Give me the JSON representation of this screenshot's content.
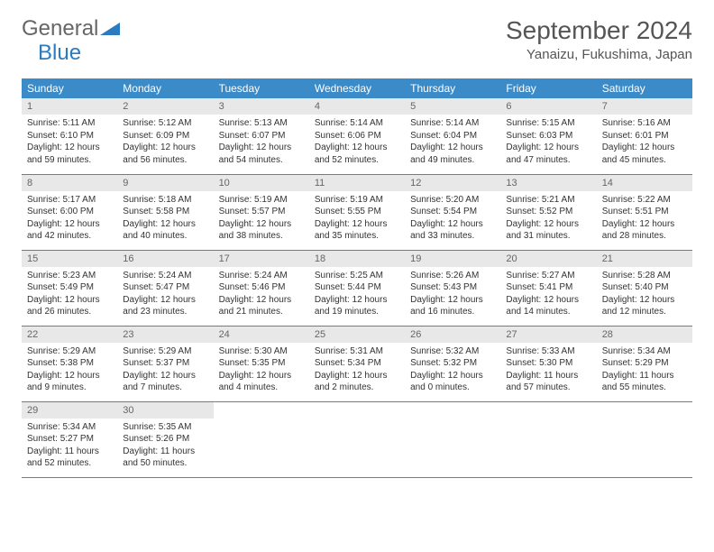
{
  "brand": {
    "part1": "General",
    "part2": "Blue"
  },
  "title": "September 2024",
  "location": "Yanaizu, Fukushima, Japan",
  "colors": {
    "header_bg": "#3b8bc8",
    "header_text": "#ffffff",
    "daynum_bg": "#e8e8e8",
    "daynum_text": "#666666",
    "body_text": "#333333",
    "title_text": "#555555",
    "row_border": "#3b8bc8",
    "logo_gray": "#666666",
    "logo_blue": "#2b7bbf"
  },
  "weekdays": [
    "Sunday",
    "Monday",
    "Tuesday",
    "Wednesday",
    "Thursday",
    "Friday",
    "Saturday"
  ],
  "start_offset": 0,
  "days": [
    {
      "n": 1,
      "sunrise": "5:11 AM",
      "sunset": "6:10 PM",
      "day_h": 12,
      "day_m": 59
    },
    {
      "n": 2,
      "sunrise": "5:12 AM",
      "sunset": "6:09 PM",
      "day_h": 12,
      "day_m": 56
    },
    {
      "n": 3,
      "sunrise": "5:13 AM",
      "sunset": "6:07 PM",
      "day_h": 12,
      "day_m": 54
    },
    {
      "n": 4,
      "sunrise": "5:14 AM",
      "sunset": "6:06 PM",
      "day_h": 12,
      "day_m": 52
    },
    {
      "n": 5,
      "sunrise": "5:14 AM",
      "sunset": "6:04 PM",
      "day_h": 12,
      "day_m": 49
    },
    {
      "n": 6,
      "sunrise": "5:15 AM",
      "sunset": "6:03 PM",
      "day_h": 12,
      "day_m": 47
    },
    {
      "n": 7,
      "sunrise": "5:16 AM",
      "sunset": "6:01 PM",
      "day_h": 12,
      "day_m": 45
    },
    {
      "n": 8,
      "sunrise": "5:17 AM",
      "sunset": "6:00 PM",
      "day_h": 12,
      "day_m": 42
    },
    {
      "n": 9,
      "sunrise": "5:18 AM",
      "sunset": "5:58 PM",
      "day_h": 12,
      "day_m": 40
    },
    {
      "n": 10,
      "sunrise": "5:19 AM",
      "sunset": "5:57 PM",
      "day_h": 12,
      "day_m": 38
    },
    {
      "n": 11,
      "sunrise": "5:19 AM",
      "sunset": "5:55 PM",
      "day_h": 12,
      "day_m": 35
    },
    {
      "n": 12,
      "sunrise": "5:20 AM",
      "sunset": "5:54 PM",
      "day_h": 12,
      "day_m": 33
    },
    {
      "n": 13,
      "sunrise": "5:21 AM",
      "sunset": "5:52 PM",
      "day_h": 12,
      "day_m": 31
    },
    {
      "n": 14,
      "sunrise": "5:22 AM",
      "sunset": "5:51 PM",
      "day_h": 12,
      "day_m": 28
    },
    {
      "n": 15,
      "sunrise": "5:23 AM",
      "sunset": "5:49 PM",
      "day_h": 12,
      "day_m": 26
    },
    {
      "n": 16,
      "sunrise": "5:24 AM",
      "sunset": "5:47 PM",
      "day_h": 12,
      "day_m": 23
    },
    {
      "n": 17,
      "sunrise": "5:24 AM",
      "sunset": "5:46 PM",
      "day_h": 12,
      "day_m": 21
    },
    {
      "n": 18,
      "sunrise": "5:25 AM",
      "sunset": "5:44 PM",
      "day_h": 12,
      "day_m": 19
    },
    {
      "n": 19,
      "sunrise": "5:26 AM",
      "sunset": "5:43 PM",
      "day_h": 12,
      "day_m": 16
    },
    {
      "n": 20,
      "sunrise": "5:27 AM",
      "sunset": "5:41 PM",
      "day_h": 12,
      "day_m": 14
    },
    {
      "n": 21,
      "sunrise": "5:28 AM",
      "sunset": "5:40 PM",
      "day_h": 12,
      "day_m": 12
    },
    {
      "n": 22,
      "sunrise": "5:29 AM",
      "sunset": "5:38 PM",
      "day_h": 12,
      "day_m": 9
    },
    {
      "n": 23,
      "sunrise": "5:29 AM",
      "sunset": "5:37 PM",
      "day_h": 12,
      "day_m": 7
    },
    {
      "n": 24,
      "sunrise": "5:30 AM",
      "sunset": "5:35 PM",
      "day_h": 12,
      "day_m": 4
    },
    {
      "n": 25,
      "sunrise": "5:31 AM",
      "sunset": "5:34 PM",
      "day_h": 12,
      "day_m": 2
    },
    {
      "n": 26,
      "sunrise": "5:32 AM",
      "sunset": "5:32 PM",
      "day_h": 12,
      "day_m": 0
    },
    {
      "n": 27,
      "sunrise": "5:33 AM",
      "sunset": "5:30 PM",
      "day_h": 11,
      "day_m": 57
    },
    {
      "n": 28,
      "sunrise": "5:34 AM",
      "sunset": "5:29 PM",
      "day_h": 11,
      "day_m": 55
    },
    {
      "n": 29,
      "sunrise": "5:34 AM",
      "sunset": "5:27 PM",
      "day_h": 11,
      "day_m": 52
    },
    {
      "n": 30,
      "sunrise": "5:35 AM",
      "sunset": "5:26 PM",
      "day_h": 11,
      "day_m": 50
    }
  ],
  "labels": {
    "sunrise": "Sunrise:",
    "sunset": "Sunset:",
    "daylight": "Daylight:",
    "hours": "hours",
    "and": "and",
    "minutes": "minutes."
  }
}
